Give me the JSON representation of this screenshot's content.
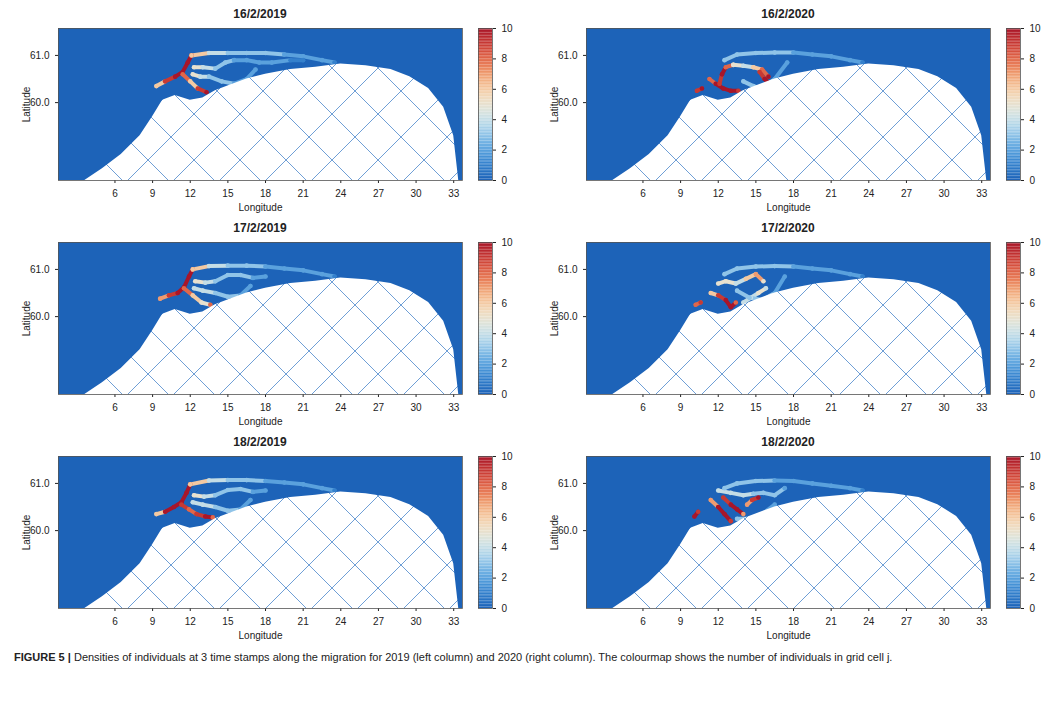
{
  "chart_data": [
    {
      "type": "heatmap",
      "title": "16/2/2019",
      "x_label": "Longitude",
      "y_label": "Latitude",
      "xlim": [
        1.5,
        33.7
      ],
      "ylim": [
        58.35,
        61.57
      ],
      "xticks": [
        6,
        9,
        12,
        15,
        18,
        21,
        24,
        27,
        30,
        33
      ],
      "yticks": [
        60,
        61
      ],
      "colorbar": {
        "range": [
          0,
          10
        ],
        "ticks": [
          0,
          2,
          4,
          6,
          8,
          10
        ]
      },
      "tracks": [
        {
          "lon": [
            9.3,
            10.0,
            10.8,
            11.4,
            11.8,
            12.1
          ],
          "lat": [
            60.35,
            60.45,
            60.55,
            60.65,
            60.85,
            61.0
          ],
          "values": [
            6,
            9,
            10,
            10,
            10,
            9
          ]
        },
        {
          "lon": [
            11.4,
            12.0,
            12.6,
            13.3
          ],
          "lat": [
            60.6,
            60.45,
            60.3,
            60.22
          ],
          "values": [
            8,
            6,
            9,
            10
          ]
        },
        {
          "lon": [
            12.1,
            13.5,
            15,
            16.5,
            18,
            19.5,
            21,
            22.5,
            23.5
          ],
          "lat": [
            61.0,
            61.05,
            61.05,
            61.05,
            61.05,
            61.02,
            60.98,
            60.9,
            60.85
          ],
          "values": [
            6,
            4,
            3,
            3,
            3,
            2,
            2,
            2,
            1
          ]
        },
        {
          "lon": [
            12.3,
            13.0,
            14.0,
            14.8,
            15.5,
            16.5,
            17.5,
            18.5,
            20,
            21
          ],
          "lat": [
            60.75,
            60.75,
            60.72,
            60.85,
            60.9,
            60.9,
            60.85,
            60.85,
            60.9,
            60.9
          ],
          "values": [
            5,
            4,
            3,
            3,
            2,
            2,
            2,
            2,
            1,
            1
          ]
        },
        {
          "lon": [
            12.2,
            12.8,
            13.5,
            14.5,
            15.5,
            16.5,
            17.2
          ],
          "lat": [
            60.6,
            60.55,
            60.55,
            60.45,
            60.4,
            60.5,
            60.7
          ],
          "values": [
            5,
            4,
            3,
            3,
            2,
            2,
            2
          ]
        }
      ]
    },
    {
      "type": "heatmap",
      "title": "16/2/2020",
      "x_label": "Longitude",
      "y_label": "Latitude",
      "xlim": [
        1.5,
        33.7
      ],
      "ylim": [
        58.35,
        61.57
      ],
      "xticks": [
        6,
        9,
        12,
        15,
        18,
        21,
        24,
        27,
        30,
        33
      ],
      "yticks": [
        60,
        61
      ],
      "colorbar": {
        "range": [
          0,
          10
        ],
        "ticks": [
          0,
          2,
          4,
          6,
          8,
          10
        ]
      },
      "tracks": [
        {
          "lon": [
            10.3,
            10.7
          ],
          "lat": [
            60.25,
            60.3
          ],
          "values": [
            9,
            10
          ]
        },
        {
          "lon": [
            11.3,
            11.8,
            12.4,
            13.0,
            13.6
          ],
          "lat": [
            60.5,
            60.4,
            60.3,
            60.25,
            60.25
          ],
          "values": [
            8,
            10,
            10,
            10,
            9
          ]
        },
        {
          "lon": [
            12.1,
            12.3,
            12.6,
            13.2
          ],
          "lat": [
            60.4,
            60.6,
            60.75,
            60.8
          ],
          "values": [
            9,
            10,
            8,
            5
          ]
        },
        {
          "lon": [
            13.2,
            14.0,
            14.8,
            15.5,
            16.0
          ],
          "lat": [
            60.8,
            60.78,
            60.75,
            60.7,
            60.55
          ],
          "values": [
            5,
            4,
            6,
            8,
            10
          ]
        },
        {
          "lon": [
            15.3,
            15.7,
            16.1
          ],
          "lat": [
            60.65,
            60.5,
            60.4
          ],
          "values": [
            9,
            10,
            7
          ]
        },
        {
          "lon": [
            12.5,
            13.5,
            15,
            16.5,
            18,
            19.5,
            21,
            22.5,
            23.5
          ],
          "lat": [
            60.9,
            61.02,
            61.05,
            61.06,
            61.06,
            61.02,
            60.98,
            60.9,
            60.85
          ],
          "values": [
            3,
            3,
            3,
            3,
            2,
            2,
            2,
            2,
            1
          ]
        },
        {
          "lon": [
            14.0,
            14.8,
            15.5,
            16.5,
            17.5
          ],
          "lat": [
            60.45,
            60.35,
            60.3,
            60.5,
            60.85
          ],
          "values": [
            3,
            3,
            3,
            2,
            2
          ]
        }
      ]
    },
    {
      "type": "heatmap",
      "title": "17/2/2019",
      "x_label": "Longitude",
      "y_label": "Latitude",
      "xlim": [
        1.5,
        33.7
      ],
      "ylim": [
        58.35,
        61.57
      ],
      "xticks": [
        6,
        9,
        12,
        15,
        18,
        21,
        24,
        27,
        30,
        33
      ],
      "yticks": [
        60,
        61
      ],
      "colorbar": {
        "range": [
          0,
          10
        ],
        "ticks": [
          0,
          2,
          4,
          6,
          8,
          10
        ]
      },
      "tracks": [
        {
          "lon": [
            9.6,
            10.3,
            11.0,
            11.5,
            11.9,
            12.2
          ],
          "lat": [
            60.38,
            60.45,
            60.5,
            60.62,
            60.85,
            61.0
          ],
          "values": [
            7,
            9,
            10,
            10,
            10,
            8
          ]
        },
        {
          "lon": [
            11.5,
            12.2,
            12.9,
            13.6
          ],
          "lat": [
            60.6,
            60.45,
            60.3,
            60.25
          ],
          "values": [
            8,
            6,
            5,
            8
          ]
        },
        {
          "lon": [
            12.2,
            13.5,
            15,
            16.5,
            18,
            19.5,
            21,
            22.5,
            23.5
          ],
          "lat": [
            61.0,
            61.07,
            61.08,
            61.08,
            61.06,
            61.02,
            60.98,
            60.9,
            60.85
          ],
          "values": [
            6,
            4,
            3,
            3,
            2,
            2,
            2,
            2,
            1
          ]
        },
        {
          "lon": [
            12.4,
            13.2,
            14.0,
            15.0,
            16.0,
            17.0,
            18.0
          ],
          "lat": [
            60.75,
            60.72,
            60.75,
            60.88,
            60.88,
            60.82,
            60.85
          ],
          "values": [
            5,
            4,
            3,
            3,
            3,
            2,
            2
          ]
        },
        {
          "lon": [
            12.3,
            13.0,
            14.0,
            15.0,
            16.0,
            16.8
          ],
          "lat": [
            60.6,
            60.55,
            60.5,
            60.42,
            60.45,
            60.65
          ],
          "values": [
            4,
            4,
            3,
            3,
            2,
            2
          ]
        }
      ]
    },
    {
      "type": "heatmap",
      "title": "17/2/2020",
      "x_label": "Longitude",
      "y_label": "Latitude",
      "xlim": [
        1.5,
        33.7
      ],
      "ylim": [
        58.35,
        61.57
      ],
      "xticks": [
        6,
        9,
        12,
        15,
        18,
        21,
        24,
        27,
        30,
        33
      ],
      "yticks": [
        60,
        61
      ],
      "colorbar": {
        "range": [
          0,
          10
        ],
        "ticks": [
          0,
          2,
          4,
          6,
          8,
          10
        ]
      },
      "tracks": [
        {
          "lon": [
            10.2,
            10.6
          ],
          "lat": [
            60.25,
            60.3
          ],
          "values": [
            8,
            9
          ]
        },
        {
          "lon": [
            11.4,
            12.0,
            12.6,
            13.0,
            13.4
          ],
          "lat": [
            60.5,
            60.45,
            60.35,
            60.2,
            60.3
          ],
          "values": [
            6,
            9,
            10,
            10,
            8
          ]
        },
        {
          "lon": [
            12.0,
            12.6,
            13.4,
            14.2,
            15.0,
            15.6
          ],
          "lat": [
            60.7,
            60.75,
            60.7,
            60.8,
            60.9,
            60.75
          ],
          "values": [
            5,
            5,
            4,
            6,
            7,
            5
          ]
        },
        {
          "lon": [
            14.0,
            14.6,
            15.2,
            15.8
          ],
          "lat": [
            60.3,
            60.4,
            60.5,
            60.6
          ],
          "values": [
            4,
            4,
            5,
            4
          ]
        },
        {
          "lon": [
            12.5,
            13.5,
            15,
            16.5,
            18,
            19.5,
            21,
            22.5,
            23.5
          ],
          "lat": [
            60.9,
            61.02,
            61.06,
            61.07,
            61.06,
            61.02,
            60.98,
            60.9,
            60.85
          ],
          "values": [
            3,
            3,
            3,
            3,
            2,
            2,
            2,
            2,
            1
          ]
        },
        {
          "lon": [
            13.5,
            14.5,
            15.5,
            16.5,
            17.3
          ],
          "lat": [
            60.55,
            60.4,
            60.35,
            60.5,
            60.85
          ],
          "values": [
            3,
            3,
            3,
            2,
            2
          ]
        }
      ]
    },
    {
      "type": "heatmap",
      "title": "18/2/2019",
      "x_label": "Longitude",
      "y_label": "Latitude",
      "xlim": [
        1.5,
        33.7
      ],
      "ylim": [
        58.35,
        61.57
      ],
      "xticks": [
        6,
        9,
        12,
        15,
        18,
        21,
        24,
        27,
        30,
        33
      ],
      "yticks": [
        60,
        61
      ],
      "colorbar": {
        "range": [
          0,
          10
        ],
        "ticks": [
          0,
          2,
          4,
          6,
          8,
          10
        ]
      },
      "tracks": [
        {
          "lon": [
            9.3,
            10.0,
            10.7,
            11.3,
            11.7,
            12.0
          ],
          "lat": [
            60.35,
            60.4,
            60.5,
            60.6,
            60.8,
            60.98
          ],
          "values": [
            6,
            10,
            10,
            10,
            10,
            8
          ]
        },
        {
          "lon": [
            11.3,
            11.9,
            12.5,
            13.2,
            13.8
          ],
          "lat": [
            60.55,
            60.45,
            60.35,
            60.3,
            60.28
          ],
          "values": [
            9,
            8,
            9,
            10,
            8
          ]
        },
        {
          "lon": [
            12.0,
            13.5,
            15,
            16.5,
            18,
            19.5,
            21,
            22.5,
            23.5
          ],
          "lat": [
            60.98,
            61.06,
            61.07,
            61.07,
            61.05,
            61.02,
            60.98,
            60.9,
            60.85
          ],
          "values": [
            6,
            4,
            3,
            3,
            2,
            2,
            2,
            2,
            1
          ]
        },
        {
          "lon": [
            12.3,
            13.1,
            14.0,
            15.0,
            16.0,
            17.0,
            18.0
          ],
          "lat": [
            60.75,
            60.72,
            60.75,
            60.86,
            60.88,
            60.82,
            60.85
          ],
          "values": [
            5,
            4,
            3,
            3,
            3,
            2,
            2
          ]
        },
        {
          "lon": [
            12.2,
            13.0,
            14.0,
            15.0,
            16.0,
            16.8
          ],
          "lat": [
            60.6,
            60.55,
            60.5,
            60.42,
            60.45,
            60.65
          ],
          "values": [
            4,
            4,
            3,
            3,
            2,
            2
          ]
        }
      ]
    },
    {
      "type": "heatmap",
      "title": "18/2/2020",
      "x_label": "Longitude",
      "y_label": "Latitude",
      "xlim": [
        1.5,
        33.7
      ],
      "ylim": [
        58.35,
        61.57
      ],
      "xticks": [
        6,
        9,
        12,
        15,
        18,
        21,
        24,
        27,
        30,
        33
      ],
      "yticks": [
        60,
        61
      ],
      "colorbar": {
        "range": [
          0,
          10
        ],
        "ticks": [
          0,
          2,
          4,
          6,
          8,
          10
        ]
      },
      "tracks": [
        {
          "lon": [
            10.1,
            10.4
          ],
          "lat": [
            60.3,
            60.4
          ],
          "values": [
            10,
            9
          ]
        },
        {
          "lon": [
            11.4,
            12.0,
            12.5,
            13.0
          ],
          "lat": [
            60.65,
            60.5,
            60.35,
            60.2
          ],
          "values": [
            7,
            10,
            10,
            9
          ]
        },
        {
          "lon": [
            12.4,
            13.0,
            13.5,
            14.0
          ],
          "lat": [
            60.7,
            60.55,
            60.45,
            60.35
          ],
          "values": [
            9,
            10,
            10,
            7
          ]
        },
        {
          "lon": [
            14.3,
            14.7,
            15.2
          ],
          "lat": [
            60.55,
            60.65,
            60.7
          ],
          "values": [
            7,
            9,
            10
          ]
        },
        {
          "lon": [
            12.5,
            13.5,
            15,
            16.5,
            18,
            19.5,
            21,
            22.5,
            23.5
          ],
          "lat": [
            60.9,
            61.0,
            61.05,
            61.06,
            61.05,
            61.0,
            60.95,
            60.9,
            60.85
          ],
          "values": [
            3,
            3,
            3,
            2,
            2,
            2,
            2,
            2,
            1
          ]
        },
        {
          "lon": [
            12.0,
            13.0,
            14.0,
            14.8,
            15.6,
            16.5,
            17.3
          ],
          "lat": [
            60.85,
            60.8,
            60.75,
            60.78,
            60.8,
            60.75,
            60.9
          ],
          "values": [
            4,
            4,
            4,
            3,
            3,
            3,
            2
          ]
        },
        {
          "lon": [
            13.5,
            14.5,
            15.5,
            16.5
          ],
          "lat": [
            60.25,
            60.25,
            60.35,
            60.55
          ],
          "values": [
            3,
            3,
            2,
            2
          ]
        }
      ]
    }
  ],
  "land": {
    "lon": [
      3.6,
      5.0,
      6.5,
      8.0,
      9.0,
      9.8,
      10.8,
      12.0,
      13.0,
      14.0,
      15.0,
      16.5,
      18.0,
      20.0,
      22.0,
      24.0,
      26.0,
      28.0,
      29.5,
      31.0,
      32.2,
      33.0,
      33.4
    ],
    "lat": [
      58.35,
      58.6,
      58.9,
      59.3,
      59.7,
      60.05,
      60.15,
      60.05,
      60.1,
      60.25,
      60.35,
      60.5,
      60.6,
      60.7,
      60.75,
      60.82,
      60.78,
      60.7,
      60.55,
      60.3,
      59.9,
      59.3,
      58.35
    ]
  },
  "caption": {
    "label": "FIGURE 5 |",
    "text": "Densities of individuals at 3 time stamps along the migration for 2019 (left column) and 2020 (right column). The colourmap shows the number of individuals in grid cell j."
  }
}
